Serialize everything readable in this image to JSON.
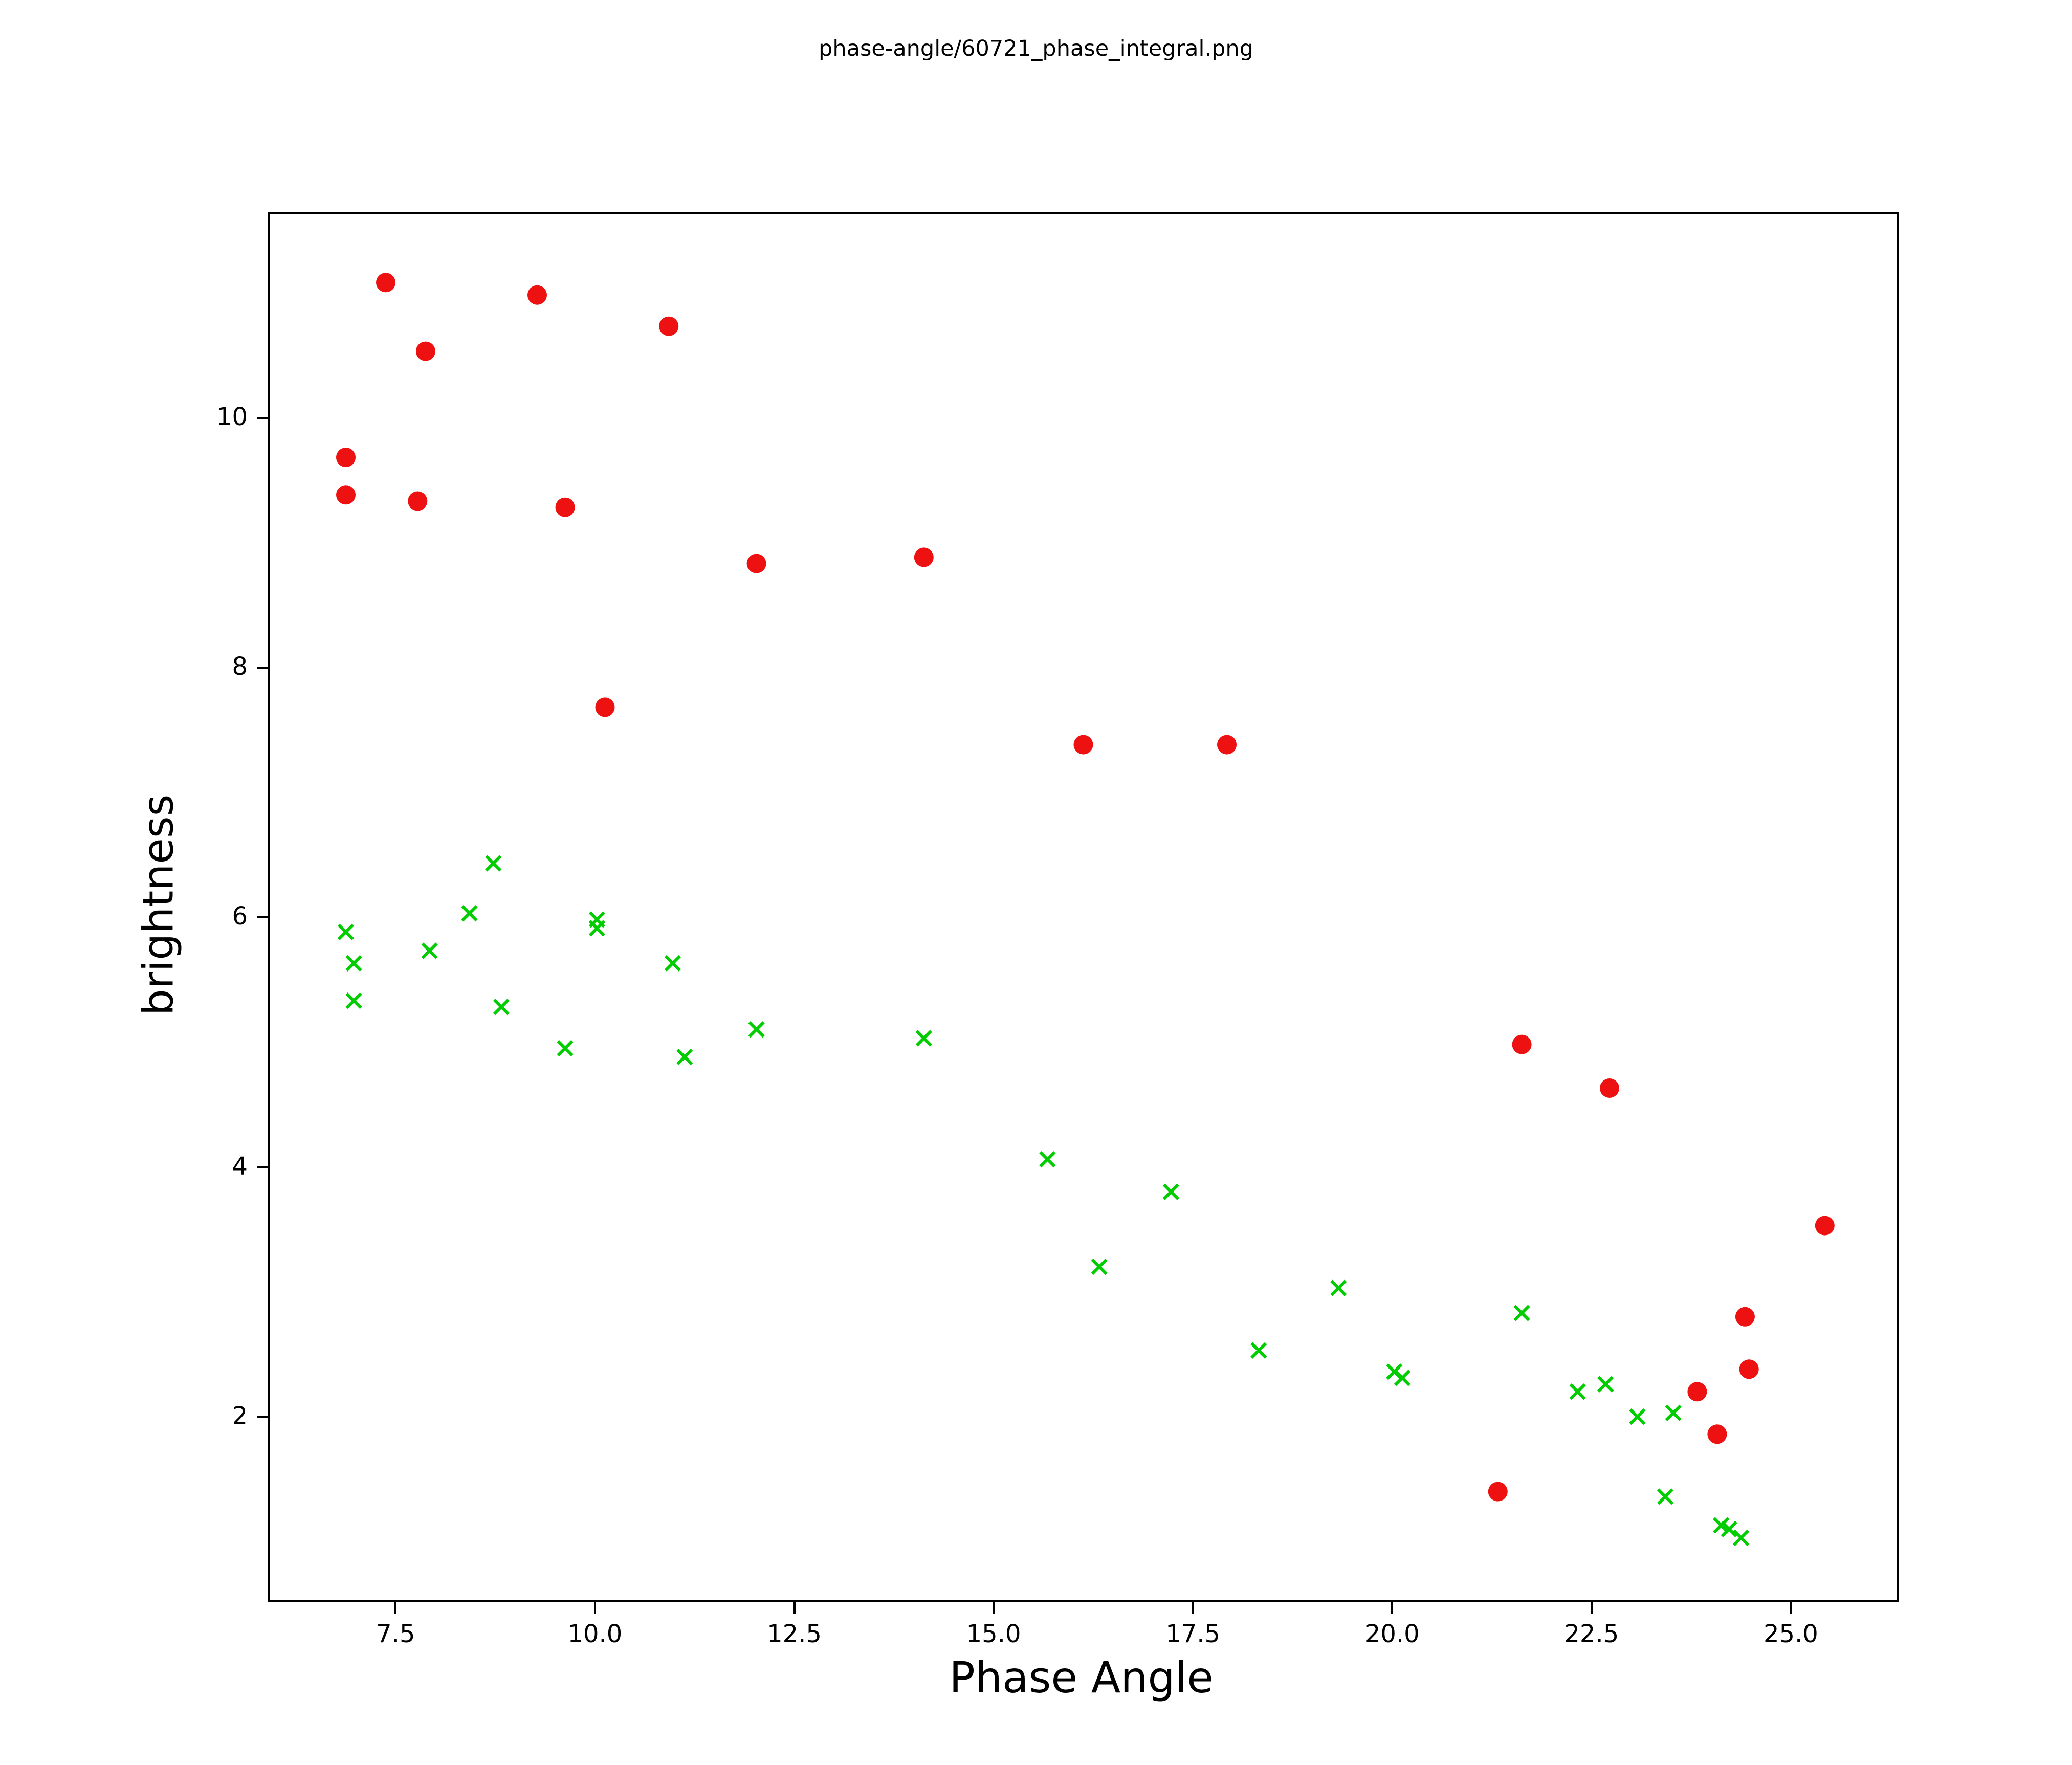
{
  "figure": {
    "background": "#ffffff",
    "axis_color": "#000000"
  },
  "chart_data": {
    "type": "scatter",
    "title": "phase-angle/60721_phase_integral.png",
    "xlabel": "Phase Angle",
    "ylabel": "brightness",
    "xlim": [
      5.9,
      26.3
    ],
    "ylim": [
      0.55,
      11.65
    ],
    "grid": false,
    "legend": "none",
    "xticks": {
      "values": [
        7.5,
        10.0,
        12.5,
        15.0,
        17.5,
        20.0,
        22.5,
        25.0
      ],
      "labels": [
        "7.5",
        "10.0",
        "12.5",
        "15.0",
        "17.5",
        "20.0",
        "22.5",
        "25.0"
      ]
    },
    "yticks": {
      "values": [
        2,
        4,
        6,
        8,
        10
      ],
      "labels": [
        "2",
        "4",
        "6",
        "8",
        "10"
      ]
    },
    "series": [
      {
        "name": "red-circles",
        "marker": "circle",
        "color": "#ee1111",
        "marker_size_px": 19,
        "points": [
          [
            7.35,
            11.1
          ],
          [
            9.25,
            11.0
          ],
          [
            10.9,
            10.75
          ],
          [
            7.85,
            10.55
          ],
          [
            6.85,
            9.7
          ],
          [
            6.85,
            9.4
          ],
          [
            7.75,
            9.35
          ],
          [
            9.6,
            9.3
          ],
          [
            14.1,
            8.9
          ],
          [
            12.0,
            8.85
          ],
          [
            10.1,
            7.7
          ],
          [
            16.1,
            7.4
          ],
          [
            17.9,
            7.4
          ],
          [
            21.6,
            5.0
          ],
          [
            22.7,
            4.65
          ],
          [
            25.4,
            3.55
          ],
          [
            24.4,
            2.82
          ],
          [
            24.45,
            2.4
          ],
          [
            23.8,
            2.22
          ],
          [
            24.05,
            1.88
          ],
          [
            21.3,
            1.42
          ]
        ]
      },
      {
        "name": "green-crosses",
        "marker": "x",
        "color": "#00cc00",
        "marker_size_px": 14,
        "points": [
          [
            6.85,
            5.9
          ],
          [
            6.95,
            5.65
          ],
          [
            6.95,
            5.35
          ],
          [
            7.9,
            5.75
          ],
          [
            8.4,
            6.05
          ],
          [
            8.7,
            6.45
          ],
          [
            8.8,
            5.3
          ],
          [
            9.6,
            4.97
          ],
          [
            10.0,
            6.0
          ],
          [
            10.0,
            5.93
          ],
          [
            10.95,
            5.65
          ],
          [
            11.1,
            4.9
          ],
          [
            12.0,
            5.12
          ],
          [
            14.1,
            5.05
          ],
          [
            15.65,
            4.08
          ],
          [
            16.3,
            3.22
          ],
          [
            17.2,
            3.82
          ],
          [
            18.3,
            2.55
          ],
          [
            19.3,
            3.05
          ],
          [
            20.0,
            2.38
          ],
          [
            20.1,
            2.33
          ],
          [
            21.6,
            2.85
          ],
          [
            22.3,
            2.22
          ],
          [
            22.65,
            2.28
          ],
          [
            23.05,
            2.02
          ],
          [
            23.5,
            2.05
          ],
          [
            23.4,
            1.38
          ],
          [
            24.1,
            1.15
          ],
          [
            24.2,
            1.12
          ],
          [
            24.35,
            1.05
          ]
        ]
      }
    ]
  }
}
